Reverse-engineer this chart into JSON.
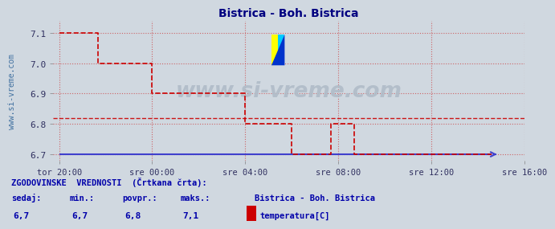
{
  "title": "Bistrica - Boh. Bistrica",
  "title_color": "#000080",
  "bg_color": "#d0d8e0",
  "plot_bg_color": "#d0d8e0",
  "ylim": [
    6.7,
    7.1
  ],
  "yticks": [
    6.7,
    6.8,
    6.9,
    7.0,
    7.1
  ],
  "xtick_labels": [
    "tor 20:00",
    "sre 00:00",
    "sre 04:00",
    "sre 08:00",
    "sre 12:00",
    "sre 16:00"
  ],
  "xtick_positions": [
    0,
    48,
    96,
    144,
    192,
    240
  ],
  "total_points": 288,
  "line_color": "#cc0000",
  "line_width": 1.2,
  "hist_avg_color": "#cc0000",
  "hist_avg_value": 6.82,
  "baseline_color": "#4040cc",
  "baseline_value": 6.7,
  "grid_color": "#cc3333",
  "grid_alpha": 0.5,
  "watermark": "www.si-vreme.com",
  "watermark_color": "#b0bcc8",
  "ylabel_left": "www.si-vreme.com",
  "ylabel_color": "#4070a0",
  "legend_title": "ZGODOVINSKE  VREDNOSTI  (Črtkana črta):",
  "legend_sedaj": "6,7",
  "legend_min": "6,7",
  "legend_povpr": "6,8",
  "legend_maks": "7,1",
  "legend_station": "Bistrica - Boh. Bistrica",
  "legend_param": "temperatura[C]",
  "legend_color": "#0000aa",
  "temperature_data": [
    7.1,
    7.1,
    7.1,
    7.1,
    7.1,
    7.1,
    7.1,
    7.1,
    7.1,
    7.1,
    7.1,
    7.1,
    7.1,
    7.1,
    7.1,
    7.1,
    7.1,
    7.1,
    7.1,
    7.1,
    7.0,
    7.0,
    7.0,
    7.0,
    7.0,
    7.0,
    7.0,
    7.0,
    7.0,
    7.0,
    7.0,
    7.0,
    7.0,
    7.0,
    7.0,
    7.0,
    7.0,
    7.0,
    7.0,
    7.0,
    7.0,
    7.0,
    7.0,
    7.0,
    7.0,
    7.0,
    7.0,
    7.0,
    6.9,
    6.9,
    6.9,
    6.9,
    6.9,
    6.9,
    6.9,
    6.9,
    6.9,
    6.9,
    6.9,
    6.9,
    6.9,
    6.9,
    6.9,
    6.9,
    6.9,
    6.9,
    6.9,
    6.9,
    6.9,
    6.9,
    6.9,
    6.9,
    6.9,
    6.9,
    6.9,
    6.9,
    6.9,
    6.9,
    6.9,
    6.9,
    6.9,
    6.9,
    6.9,
    6.9,
    6.9,
    6.9,
    6.9,
    6.9,
    6.9,
    6.9,
    6.9,
    6.9,
    6.9,
    6.9,
    6.9,
    6.9,
    6.8,
    6.8,
    6.8,
    6.8,
    6.8,
    6.8,
    6.8,
    6.8,
    6.8,
    6.8,
    6.8,
    6.8,
    6.8,
    6.8,
    6.8,
    6.8,
    6.8,
    6.8,
    6.8,
    6.8,
    6.8,
    6.8,
    6.8,
    6.8,
    6.7,
    6.7,
    6.7,
    6.7,
    6.7,
    6.7,
    6.7,
    6.7,
    6.7,
    6.7,
    6.7,
    6.7,
    6.7,
    6.7,
    6.7,
    6.7,
    6.7,
    6.7,
    6.7,
    6.7,
    6.8,
    6.8,
    6.8,
    6.8,
    6.8,
    6.8,
    6.8,
    6.8,
    6.8,
    6.8,
    6.8,
    6.8,
    6.7,
    6.7,
    6.7,
    6.7,
    6.7,
    6.7,
    6.7,
    6.7,
    6.7,
    6.7,
    6.7,
    6.7,
    6.7,
    6.7,
    6.7,
    6.7,
    6.7,
    6.7,
    6.7,
    6.7,
    6.7,
    6.7,
    6.7,
    6.7,
    6.7,
    6.7,
    6.7,
    6.7,
    6.7,
    6.7,
    6.7,
    6.7,
    6.7,
    6.7,
    6.7,
    6.7,
    6.7,
    6.7,
    6.7,
    6.7,
    6.7,
    6.7,
    6.7,
    6.7,
    6.7,
    6.7,
    6.7,
    6.7,
    6.7,
    6.7,
    6.7,
    6.7,
    6.7,
    6.7,
    6.7,
    6.7,
    6.7,
    6.7,
    6.7,
    6.7,
    6.7,
    6.7,
    6.7,
    6.7,
    6.7,
    6.7,
    6.7,
    6.7,
    6.7,
    6.7,
    6.7,
    6.7
  ]
}
